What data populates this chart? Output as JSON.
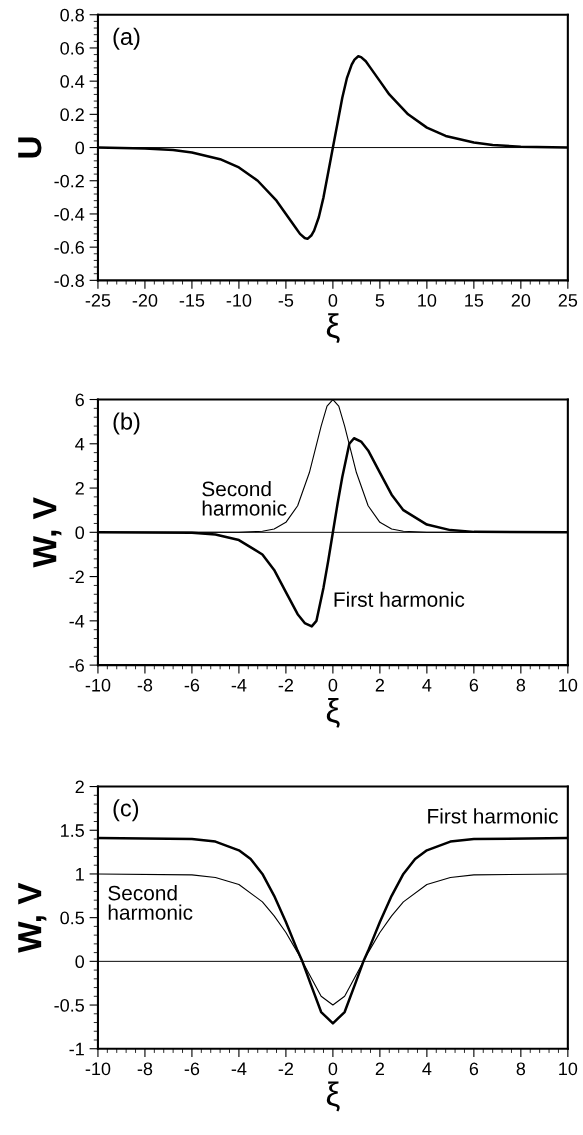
{
  "chart_data": [
    {
      "type": "line",
      "xlabel": "ξ",
      "ylabel": "U",
      "annotations": [
        "(a)"
      ],
      "xlim": [
        -25,
        25
      ],
      "xticks": [
        -25,
        -20,
        -15,
        -10,
        -5,
        0,
        5,
        10,
        15,
        20,
        25
      ],
      "ylim": [
        -0.8,
        0.8
      ],
      "yticks": [
        -0.8,
        -0.6,
        -0.4,
        -0.2,
        0,
        0.2,
        0.4,
        0.6,
        0.8
      ],
      "ref_lines": [
        {
          "axis": "y",
          "value": 0,
          "color": "#000000"
        }
      ],
      "line_style": "solid",
      "marker": "none",
      "grid": false,
      "legend": false,
      "series": [
        {
          "color": "#000000",
          "x": [
            -25,
            -20,
            -17,
            -15,
            -12,
            -10,
            -8,
            -6,
            -5,
            -4,
            -3.5,
            -3,
            -2.7,
            -2.3,
            -2,
            -1.5,
            -1,
            -0.5,
            0,
            0.5,
            1,
            1.5,
            2,
            2.3,
            2.7,
            3,
            3.5,
            4,
            5,
            6,
            8,
            10,
            12,
            15,
            17,
            20,
            25
          ],
          "values": [
            0,
            -0.005,
            -0.015,
            -0.03,
            -0.07,
            -0.12,
            -0.2,
            -0.32,
            -0.4,
            -0.48,
            -0.52,
            -0.545,
            -0.55,
            -0.53,
            -0.5,
            -0.42,
            -0.3,
            -0.15,
            0,
            0.15,
            0.3,
            0.42,
            0.5,
            0.53,
            0.55,
            0.545,
            0.52,
            0.48,
            0.4,
            0.32,
            0.2,
            0.12,
            0.07,
            0.03,
            0.015,
            0.005,
            0
          ]
        }
      ]
    },
    {
      "type": "line",
      "xlabel": "ξ",
      "ylabel": "W, V",
      "annotations": [
        "(b)"
      ],
      "xlim": [
        -10,
        10
      ],
      "xticks": [
        -10,
        -8,
        -6,
        -4,
        -2,
        0,
        2,
        4,
        6,
        8,
        10
      ],
      "ylim": [
        -6,
        6
      ],
      "yticks": [
        -6,
        -4,
        -2,
        0,
        2,
        4,
        6
      ],
      "ref_lines": [
        {
          "axis": "y",
          "value": 0,
          "color": "#000000"
        }
      ],
      "line_style": "solid",
      "marker": "none",
      "grid": false,
      "legend": false,
      "series": [
        {
          "name": "Second\nharmonic",
          "color": "#000000",
          "x": [
            -10,
            -4,
            -3,
            -2.5,
            -2,
            -1.5,
            -1,
            -0.5,
            -0.25,
            0,
            0.25,
            0.5,
            1,
            1.5,
            2,
            2.5,
            3,
            4,
            10
          ],
          "values": [
            0,
            0,
            0.05,
            0.15,
            0.45,
            1.2,
            2.7,
            4.8,
            5.7,
            6,
            5.7,
            4.8,
            2.7,
            1.2,
            0.45,
            0.15,
            0.05,
            0,
            0
          ]
        },
        {
          "name": "First harmonic",
          "color": "#000000",
          "x": [
            -10,
            -6,
            -5,
            -4,
            -3,
            -2.5,
            -2,
            -1.5,
            -1.2,
            -0.9,
            -0.7,
            -0.4,
            -0.2,
            0,
            0.2,
            0.4,
            0.7,
            0.9,
            1.2,
            1.5,
            2,
            2.5,
            3,
            4,
            5,
            6,
            10
          ],
          "values": [
            0,
            -0.02,
            -0.1,
            -0.35,
            -1.0,
            -1.7,
            -2.7,
            -3.7,
            -4.1,
            -4.25,
            -4.0,
            -2.5,
            -1.3,
            0,
            1.3,
            2.5,
            4.0,
            4.25,
            4.1,
            3.7,
            2.7,
            1.7,
            1.0,
            0.35,
            0.1,
            0.02,
            0
          ]
        }
      ]
    },
    {
      "type": "line",
      "xlabel": "ξ",
      "ylabel": "W, V",
      "annotations": [
        "(c)"
      ],
      "xlim": [
        -10,
        10
      ],
      "xticks": [
        -10,
        -8,
        -6,
        -4,
        -2,
        0,
        2,
        4,
        6,
        8,
        10
      ],
      "ylim": [
        -1,
        2
      ],
      "yticks": [
        -1,
        -0.5,
        0,
        0.5,
        1,
        1.5,
        2
      ],
      "ref_lines": [
        {
          "axis": "y",
          "value": 0,
          "color": "#000000"
        }
      ],
      "line_style": "solid",
      "marker": "none",
      "grid": false,
      "legend": false,
      "series": [
        {
          "name": "First harmonic",
          "color": "#000000",
          "x": [
            -10,
            -6,
            -5,
            -4,
            -3.5,
            -3,
            -2.5,
            -2,
            -1.5,
            -1.3,
            -1,
            -0.5,
            0,
            0.5,
            1,
            1.3,
            1.5,
            2,
            2.5,
            3,
            3.5,
            4,
            5,
            6,
            10
          ],
          "values": [
            1.41,
            1.4,
            1.37,
            1.27,
            1.17,
            1.0,
            0.75,
            0.45,
            0.12,
            0,
            -0.22,
            -0.58,
            -0.71,
            -0.58,
            -0.22,
            0,
            0.12,
            0.45,
            0.75,
            1.0,
            1.17,
            1.27,
            1.37,
            1.4,
            1.41
          ]
        },
        {
          "name": "Second\nharmonic",
          "color": "#000000",
          "x": [
            -10,
            -6,
            -5,
            -4,
            -3,
            -2.5,
            -2,
            -1.5,
            -1.3,
            -1,
            -0.5,
            0,
            0.5,
            1,
            1.3,
            1.5,
            2,
            2.5,
            3,
            4,
            5,
            6,
            10
          ],
          "values": [
            1.0,
            0.99,
            0.96,
            0.88,
            0.68,
            0.52,
            0.33,
            0.1,
            0,
            -0.15,
            -0.4,
            -0.5,
            -0.4,
            -0.15,
            0,
            0.1,
            0.33,
            0.52,
            0.68,
            0.88,
            0.96,
            0.99,
            1.0
          ]
        }
      ]
    }
  ]
}
